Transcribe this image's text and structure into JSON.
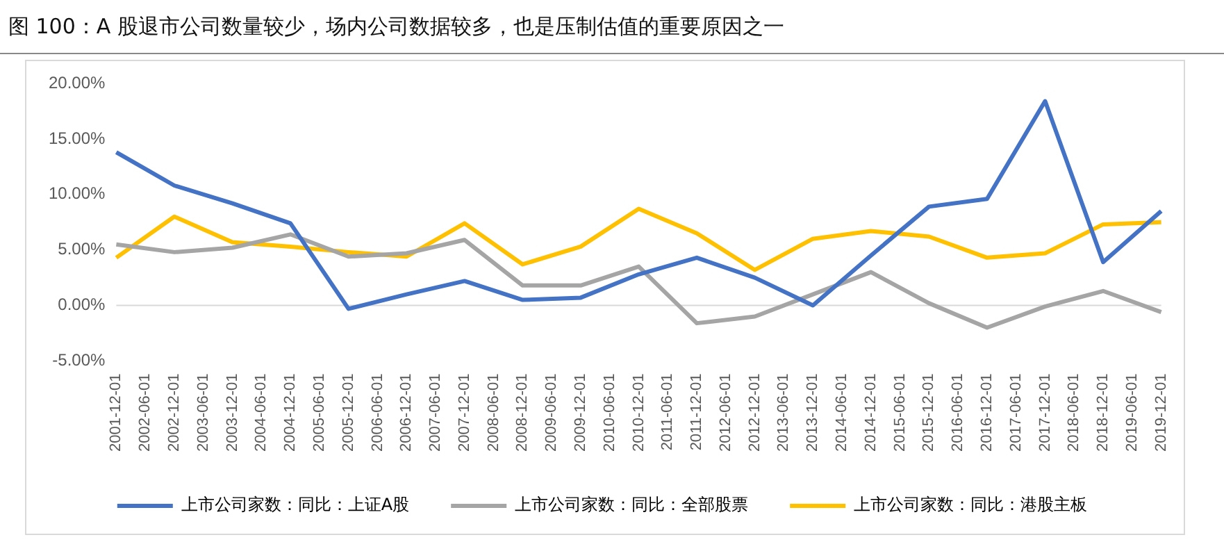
{
  "chart_data": {
    "type": "line",
    "title": "图 100：A 股退市公司数量较少，场内公司数据较多，也是压制估值的重要原因之一",
    "categories": [
      "2001-12-01",
      "2002-06-01",
      "2002-12-01",
      "2003-06-01",
      "2003-12-01",
      "2004-06-01",
      "2004-12-01",
      "2005-06-01",
      "2005-12-01",
      "2006-06-01",
      "2006-12-01",
      "2007-06-01",
      "2007-12-01",
      "2008-06-01",
      "2008-12-01",
      "2009-06-01",
      "2009-12-01",
      "2010-06-01",
      "2010-12-01",
      "2011-06-01",
      "2011-12-01",
      "2012-06-01",
      "2012-12-01",
      "2013-06-01",
      "2013-12-01",
      "2014-06-01",
      "2014-12-01",
      "2015-06-01",
      "2015-12-01",
      "2016-06-01",
      "2016-12-01",
      "2017-06-01",
      "2017-12-01",
      "2018-06-01",
      "2018-12-01",
      "2019-06-01",
      "2019-12-01"
    ],
    "series": [
      {
        "name": "上市公司家数：同比：上证A股",
        "color": "#4472c4",
        "values": [
          13.8,
          null,
          10.8,
          null,
          9.2,
          null,
          7.4,
          null,
          -0.3,
          null,
          1.0,
          null,
          2.2,
          null,
          0.5,
          null,
          0.7,
          null,
          2.8,
          null,
          4.3,
          null,
          2.5,
          null,
          0.0,
          null,
          4.5,
          null,
          8.9,
          null,
          9.6,
          null,
          18.4,
          null,
          3.9,
          null,
          8.5
        ]
      },
      {
        "name": "上市公司家数：同比：全部股票",
        "color": "#a5a5a5",
        "values": [
          5.5,
          null,
          4.8,
          null,
          5.2,
          null,
          6.4,
          null,
          4.4,
          null,
          4.7,
          null,
          5.9,
          null,
          1.8,
          null,
          1.8,
          null,
          3.5,
          null,
          -1.6,
          null,
          -1.0,
          null,
          1.0,
          null,
          3.0,
          null,
          0.2,
          null,
          -2.0,
          null,
          -0.1,
          null,
          1.3,
          null,
          -0.6
        ]
      },
      {
        "name": "上市公司家数：同比：港股主板",
        "color": "#ffc000",
        "values": [
          4.3,
          null,
          8.0,
          null,
          5.7,
          null,
          5.3,
          null,
          4.8,
          null,
          4.4,
          null,
          7.4,
          null,
          3.7,
          null,
          5.3,
          null,
          8.7,
          null,
          6.5,
          null,
          3.2,
          null,
          6.0,
          null,
          6.7,
          null,
          6.2,
          null,
          4.3,
          null,
          4.7,
          null,
          7.3,
          null,
          7.5
        ]
      }
    ],
    "ylim": [
      -5,
      20
    ],
    "yticks": [
      {
        "value": -5,
        "label": "-5.00%"
      },
      {
        "value": 0,
        "label": "0.00%"
      },
      {
        "value": 5,
        "label": "5.00%"
      },
      {
        "value": 10,
        "label": "10.00%"
      },
      {
        "value": 15,
        "label": "15.00%"
      },
      {
        "value": 20,
        "label": "20.00%"
      }
    ],
    "ref_lines": [
      {
        "axis": "y",
        "value": 0,
        "color": "#d9d9d9"
      }
    ],
    "grid": false,
    "legend": "bottom",
    "marker": "none",
    "line_style": "solid"
  }
}
